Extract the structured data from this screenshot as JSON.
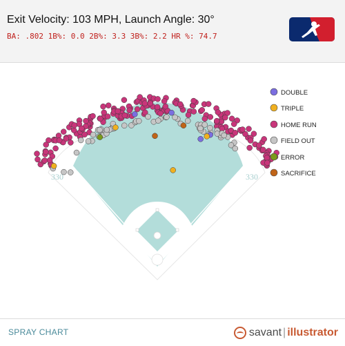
{
  "header": {
    "title": "Exit Velocity: 103 MPH, Launch Angle: 30°",
    "stats": "BA: .802 1B%: 0.0 2B%: 3.3 3B%: 2.2 HR %: 74.7"
  },
  "colors": {
    "double": "#7b6ee0",
    "triple": "#f0b020",
    "home_run": "#c8357a",
    "field_out": "#c6c6c6",
    "error": "#7a9a1a",
    "sacrifice": "#c06418",
    "grass": "#b3ddda",
    "infield": "#ffffff",
    "text_red": "#c0201c"
  },
  "field": {
    "left_distance": "330",
    "right_distance": "330"
  },
  "legend": {
    "double": "DOUBLE",
    "triple": "TRIPLE",
    "home_run": "HOME RUN",
    "field_out": "FIELD OUT",
    "error": "ERROR",
    "sacrifice": "SACRIFICE"
  },
  "footer": {
    "label": "SPRAY CHART",
    "brand_a": "savant",
    "brand_sep": "|",
    "brand_b": "illustrator"
  },
  "chart_data": {
    "type": "scatter",
    "axes_visible": false,
    "series": [
      {
        "key": "home_run",
        "name": "HOME RUN",
        "points": []
      },
      {
        "key": "field_out",
        "name": "FIELD OUT",
        "points": []
      },
      {
        "key": "double",
        "name": "DOUBLE",
        "points": []
      },
      {
        "key": "triple",
        "name": "TRIPLE",
        "points": []
      },
      {
        "key": "error",
        "name": "ERROR",
        "points": []
      },
      {
        "key": "sacrifice",
        "name": "SACRIFICE",
        "points": []
      }
    ]
  }
}
